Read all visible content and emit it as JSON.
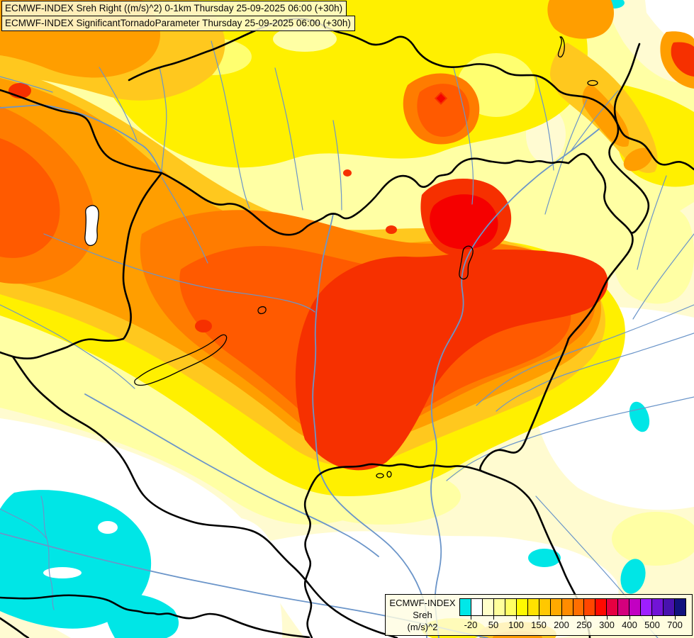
{
  "title_box": {
    "line1": "ECMWF-INDEX Sreh Right ((m/s)^2) 0-1km Thursday 25-09-2025 06:00 (+30h)",
    "line2": "ECMWF-INDEX SignificantTornadoParameter Thursday 25-09-2025 06:00 (+30h)"
  },
  "legend": {
    "title": "ECMWF-INDEX",
    "parameter": "Sreh",
    "units": "(m/s)^2",
    "tick_labels": [
      "-20",
      "50",
      "100",
      "150",
      "200",
      "250",
      "300",
      "400",
      "500",
      "700"
    ],
    "colors": [
      "#00E8E8",
      "#FFFFFF",
      "#FFFFC9",
      "#FFFF9B",
      "#FFFF63",
      "#FFFA00",
      "#FFE200",
      "#FFC800",
      "#FFAA00",
      "#FF8C00",
      "#FF6E00",
      "#FF4600",
      "#FF0A00",
      "#E60041",
      "#D4007D",
      "#C200C2",
      "#9E1FFF",
      "#7214D6",
      "#4812AE",
      "#12127E"
    ]
  },
  "chart_data": {
    "type": "heatmap",
    "subtype": "filled_contour_weather_map",
    "model": "ECMWF-INDEX",
    "parameter": "Sreh Right",
    "units": "(m/s)^2",
    "layer": "0-1km",
    "overlay_parameter": "SignificantTornadoParameter",
    "valid_time": "Thursday 25-09-2025 06:00 (+30h)",
    "legend_title": "ECMWF-INDEX Sreh (m/s)^2",
    "scale_tick_values": [
      -20,
      50,
      100,
      150,
      200,
      250,
      300,
      400,
      500,
      700
    ],
    "scale_colors": [
      "#00E8E8",
      "#FFFFFF",
      "#FFFFC9",
      "#FFFF9B",
      "#FFFF63",
      "#FFFA00",
      "#FFE200",
      "#FFC800",
      "#FFAA00",
      "#FF8C00",
      "#FF6E00",
      "#FF4600",
      "#FF0A00",
      "#E60041",
      "#D4007D",
      "#C200C2",
      "#9E1FFF",
      "#7214D6",
      "#4812AE",
      "#12127E"
    ],
    "legend_position": "bottom-right",
    "value_extent_on_map": {
      "min_band": "< -20 (cyan)",
      "max_band": "300-400 (red)"
    }
  }
}
